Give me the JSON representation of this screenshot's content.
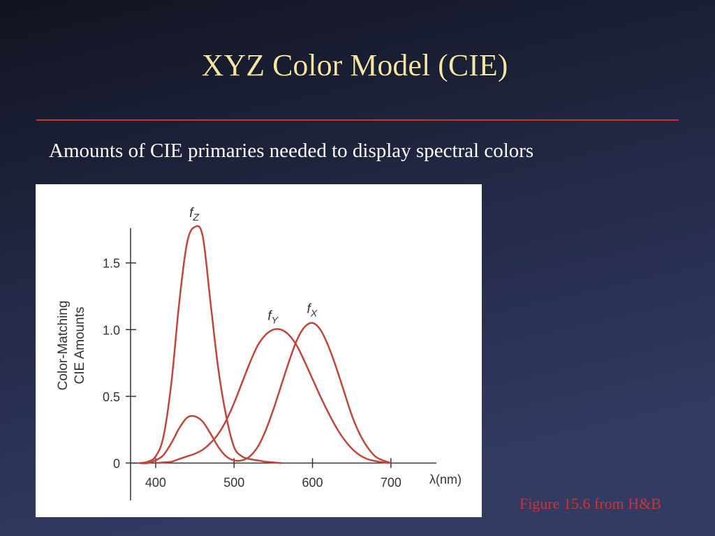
{
  "slide": {
    "title": "XYZ Color Model (CIE)",
    "subtitle": "Amounts of CIE primaries needed to display spectral colors",
    "caption": "Figure 15.6 from H&B"
  },
  "chart_data": {
    "type": "line",
    "ylabel": [
      "Color-Matching",
      "CIE Amounts"
    ],
    "xlabel": "λ(nm)",
    "x": [
      380,
      390,
      400,
      410,
      420,
      430,
      440,
      450,
      460,
      470,
      480,
      490,
      500,
      510,
      520,
      530,
      540,
      550,
      560,
      570,
      580,
      590,
      600,
      610,
      620,
      630,
      640,
      650,
      660,
      670,
      680,
      690,
      700
    ],
    "series": [
      {
        "name": "fZ",
        "color": "#c0453a",
        "values": [
          0,
          0.01,
          0.05,
          0.2,
          0.6,
          1.2,
          1.65,
          1.77,
          1.7,
          1.2,
          0.7,
          0.35,
          0.12,
          0.05,
          0.03,
          0.02,
          0.01,
          0.005,
          0,
          null,
          null,
          null,
          null,
          null,
          null,
          null,
          null,
          null,
          null,
          null,
          null,
          null,
          null
        ]
      },
      {
        "name": "fY",
        "color": "#c0453a",
        "values": [
          null,
          null,
          0,
          0.005,
          0.01,
          0.03,
          0.05,
          0.07,
          0.1,
          0.15,
          0.22,
          0.32,
          0.45,
          0.6,
          0.75,
          0.88,
          0.96,
          1.0,
          1.0,
          0.96,
          0.88,
          0.76,
          0.63,
          0.5,
          0.38,
          0.27,
          0.18,
          0.11,
          0.06,
          0.03,
          0.015,
          0.005,
          0
        ]
      },
      {
        "name": "fX",
        "color": "#c0453a",
        "values": [
          0,
          0,
          0.02,
          0.06,
          0.15,
          0.26,
          0.34,
          0.35,
          0.31,
          0.22,
          0.12,
          0.05,
          0.02,
          0.02,
          0.05,
          0.12,
          0.24,
          0.4,
          0.58,
          0.76,
          0.92,
          1.02,
          1.05,
          1.0,
          0.88,
          0.72,
          0.54,
          0.36,
          0.22,
          0.12,
          0.05,
          0.02,
          0
        ]
      }
    ],
    "xlim": [
      368,
      758
    ],
    "xticks": [
      400,
      500,
      600,
      700
    ],
    "ylim": [
      -0.28,
      1.76
    ],
    "yticks": [
      0,
      0.5,
      {
        "value": 1,
        "label": "1.0"
      },
      1.5
    ]
  }
}
